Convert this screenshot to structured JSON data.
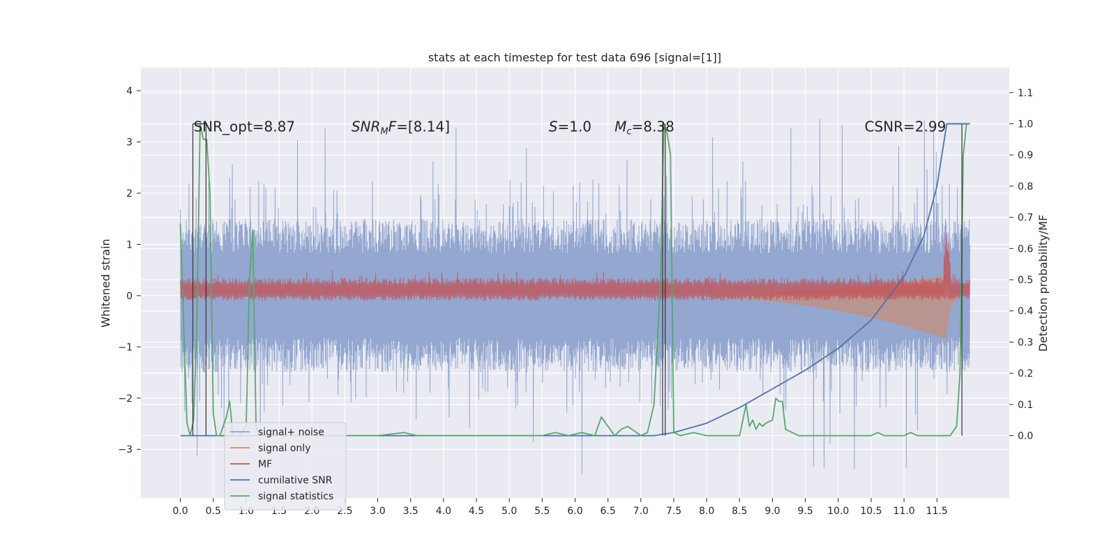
{
  "chart_data": {
    "type": "line",
    "title": "stats at each timestep for test data 696 [signal=[1]]",
    "ylabel": "Whitened strain",
    "ylabel_right": "Detection probability/MF",
    "xlabel": "",
    "x_ticks": [
      "0.0",
      "0.5",
      "1.0",
      "1.5",
      "2.0",
      "2.5",
      "3.0",
      "3.5",
      "4.0",
      "4.5",
      "5.0",
      "5.5",
      "6.0",
      "6.5",
      "7.0",
      "7.5",
      "8.0",
      "8.5",
      "9.0",
      "9.5",
      "10.0",
      "10.5",
      "11.0",
      "11.5"
    ],
    "y_ticks": [
      "4",
      "3",
      "2",
      "1",
      "0",
      "−1",
      "−2",
      "−3"
    ],
    "y_ticks_right": [
      "1.1",
      "1.0",
      "0.9",
      "0.8",
      "0.7",
      "0.6",
      "0.5",
      "0.4",
      "0.3",
      "0.2",
      "0.1",
      "0.0"
    ],
    "xlim": [
      -0.6,
      12.6
    ],
    "ylim": [
      -3.95,
      4.45
    ],
    "ylim_right": [
      -0.2,
      1.18
    ],
    "grid": true,
    "legend_position": "lower-left",
    "annotations": [
      {
        "text": "SNR_opt=8.87",
        "x": 0.2,
        "y": 3.3
      },
      {
        "text": "SNR_MF=[8.14]",
        "x": 2.6,
        "y": 3.3,
        "math": "snrmf"
      },
      {
        "text": "S=1.0",
        "x": 5.6,
        "y": 3.3,
        "math": "s"
      },
      {
        "text": "M_c=8.38",
        "x": 6.6,
        "y": 3.3,
        "math": "mc"
      },
      {
        "text": "CSNR=2.99",
        "x": 10.4,
        "y": 3.3
      }
    ],
    "series": [
      {
        "name": "signal+ noise",
        "color": "#8ea3cd",
        "axis": "left",
        "kind": "noise",
        "envelope": 1.5,
        "x_range": [
          0.0,
          12.0
        ]
      },
      {
        "name": "signal only",
        "color": "#dd8452",
        "axis": "left",
        "kind": "chirp",
        "peak_amplitude": 0.85,
        "merger_x": 11.65
      },
      {
        "name": "MF",
        "color": "#c44e52",
        "axis": "left",
        "kind": "mf_band",
        "band": [
          0.0,
          0.35
        ],
        "peak_x": 11.65,
        "peak_value": 1.3
      },
      {
        "name": "cumilative SNR",
        "color": "#4c72b0",
        "axis": "right",
        "x": [
          0.0,
          7.2,
          7.5,
          8.0,
          8.5,
          9.0,
          9.5,
          10.0,
          10.5,
          11.0,
          11.3,
          11.5,
          11.65,
          12.0
        ],
        "y": [
          0.0,
          0.0,
          0.01,
          0.04,
          0.09,
          0.15,
          0.21,
          0.28,
          0.37,
          0.51,
          0.64,
          0.8,
          1.0,
          1.0
        ]
      },
      {
        "name": "signal statistics",
        "color": "#55a868",
        "axis": "right",
        "x": [
          0.0,
          0.1,
          0.15,
          0.2,
          0.25,
          0.3,
          0.35,
          0.4,
          0.45,
          0.5,
          0.55,
          0.6,
          0.7,
          0.75,
          0.8,
          0.9,
          1.0,
          1.05,
          1.1,
          1.15,
          1.2,
          1.3,
          3.0,
          3.4,
          3.6,
          5.5,
          5.7,
          5.9,
          6.1,
          6.3,
          6.4,
          6.6,
          6.7,
          6.8,
          7.0,
          7.1,
          7.2,
          7.3,
          7.35,
          7.4,
          7.45,
          7.5,
          7.6,
          7.8,
          8.0,
          8.5,
          8.6,
          8.65,
          8.7,
          8.75,
          8.8,
          8.85,
          8.9,
          9.0,
          9.05,
          9.1,
          9.15,
          9.2,
          9.4,
          10.5,
          10.6,
          10.7,
          11.0,
          11.1,
          11.2,
          11.7,
          11.8,
          11.85,
          11.9,
          11.95
        ],
        "y": [
          0.68,
          0.04,
          0.0,
          0.05,
          0.35,
          1.0,
          0.95,
          0.95,
          0.78,
          0.07,
          0.0,
          0.0,
          0.06,
          0.11,
          0.0,
          0.0,
          0.03,
          0.5,
          0.66,
          0.03,
          0.0,
          0.0,
          0.0,
          0.01,
          0.0,
          0.0,
          0.01,
          0.0,
          0.01,
          0.0,
          0.06,
          0.0,
          0.02,
          0.03,
          0.0,
          0.01,
          0.1,
          0.5,
          1.0,
          0.97,
          0.9,
          0.01,
          0.0,
          0.01,
          0.0,
          0.0,
          0.1,
          0.03,
          0.05,
          0.02,
          0.04,
          0.03,
          0.04,
          0.05,
          0.12,
          0.11,
          0.11,
          0.02,
          0.0,
          0.0,
          0.01,
          0.0,
          0.0,
          0.01,
          0.0,
          0.0,
          0.03,
          0.2,
          0.9,
          1.0
        ]
      },
      {
        "name": "",
        "color": "#333333",
        "axis": "right",
        "kind": "markers",
        "x": [
          0.19,
          0.39,
          7.33,
          7.37,
          11.88
        ]
      }
    ]
  }
}
